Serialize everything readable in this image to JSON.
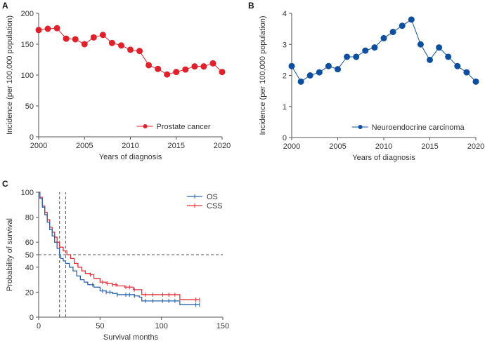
{
  "chart_data": [
    {
      "panel": "A",
      "type": "line",
      "xlabel": "Years of diagnosis",
      "ylabel": "Incidence (per 100,000 population)",
      "xlim": [
        2000,
        2020
      ],
      "ylim": [
        0,
        200
      ],
      "xticks": [
        2000,
        2005,
        2010,
        2015,
        2020
      ],
      "yticks": [
        0,
        50,
        100,
        150,
        200
      ],
      "legend_position": "bottom-right",
      "series": [
        {
          "name": "Prostate cancer",
          "color": "#e0202a",
          "x": [
            2000,
            2001,
            2002,
            2003,
            2004,
            2005,
            2006,
            2007,
            2008,
            2009,
            2010,
            2011,
            2012,
            2013,
            2014,
            2015,
            2016,
            2017,
            2018,
            2019,
            2020
          ],
          "values": [
            173,
            175,
            176,
            159,
            158,
            150,
            161,
            165,
            152,
            148,
            141,
            139,
            116,
            110,
            101,
            105,
            109,
            114,
            114,
            119,
            105
          ]
        }
      ]
    },
    {
      "panel": "B",
      "type": "line",
      "xlabel": "Years of diagnosis",
      "ylabel": "Incidence (per 100,000 population)",
      "xlim": [
        2000,
        2020
      ],
      "ylim": [
        0,
        4
      ],
      "xticks": [
        2000,
        2005,
        2010,
        2015,
        2020
      ],
      "yticks": [
        0,
        1,
        2,
        3,
        4
      ],
      "legend_position": "bottom-right",
      "series": [
        {
          "name": "Neuroendocrine carcinoma",
          "color": "#0d4f9e",
          "x": [
            2000,
            2001,
            2002,
            2003,
            2004,
            2005,
            2006,
            2007,
            2008,
            2009,
            2010,
            2011,
            2012,
            2013,
            2014,
            2015,
            2016,
            2017,
            2018,
            2019,
            2020
          ],
          "values": [
            2.3,
            1.8,
            2.0,
            2.1,
            2.3,
            2.2,
            2.6,
            2.6,
            2.8,
            2.9,
            3.2,
            3.4,
            3.6,
            3.8,
            3.0,
            2.5,
            2.9,
            2.6,
            2.3,
            2.1,
            1.8
          ]
        }
      ]
    },
    {
      "panel": "C",
      "type": "line",
      "subtype": "kaplan-meier",
      "xlabel": "Survival months",
      "ylabel": "Probability of survival",
      "xlim": [
        0,
        150
      ],
      "ylim": [
        0,
        100
      ],
      "xticks": [
        0,
        50,
        100,
        150
      ],
      "yticks": [
        0,
        20,
        40,
        50,
        60,
        80,
        100
      ],
      "legend_position": "top-right",
      "reference_lines": {
        "horizontal": [
          50
        ],
        "vertical": [
          17,
          22
        ]
      },
      "series": [
        {
          "name": "OS",
          "color": "#2a64b0",
          "x": [
            0,
            1,
            3,
            5,
            7,
            9,
            11,
            13,
            15,
            17,
            18,
            20,
            22,
            25,
            28,
            31,
            34,
            37,
            40,
            45,
            50,
            55,
            60,
            64,
            70,
            78,
            82,
            84,
            115,
            131
          ],
          "values": [
            100,
            95,
            88,
            82,
            76,
            70,
            65,
            60,
            55,
            50,
            47,
            45,
            43,
            40,
            37,
            33,
            30,
            28,
            26,
            24,
            21,
            20,
            19,
            18,
            18,
            17,
            16,
            13,
            10,
            10
          ],
          "censored": [
            44,
            52,
            55,
            58,
            64,
            71,
            74,
            78,
            87,
            93,
            101,
            106,
            111,
            128,
            131
          ]
        },
        {
          "name": "CSS",
          "color": "#e8303a",
          "x": [
            0,
            1,
            3,
            5,
            7,
            9,
            11,
            13,
            15,
            17,
            20,
            23,
            26,
            29,
            32,
            35,
            38,
            42,
            45,
            50,
            55,
            60,
            64,
            70,
            77,
            82,
            84,
            115,
            131
          ],
          "values": [
            100,
            96,
            89,
            84,
            78,
            72,
            68,
            64,
            60,
            56,
            53,
            50,
            47,
            43,
            40,
            37,
            35,
            34,
            31,
            28,
            27,
            26,
            25,
            24,
            22,
            22,
            18,
            14,
            14
          ],
          "censored": [
            42,
            52,
            56,
            60,
            63,
            71,
            74,
            78,
            87,
            93,
            101,
            106,
            111,
            128,
            131
          ]
        }
      ]
    }
  ]
}
